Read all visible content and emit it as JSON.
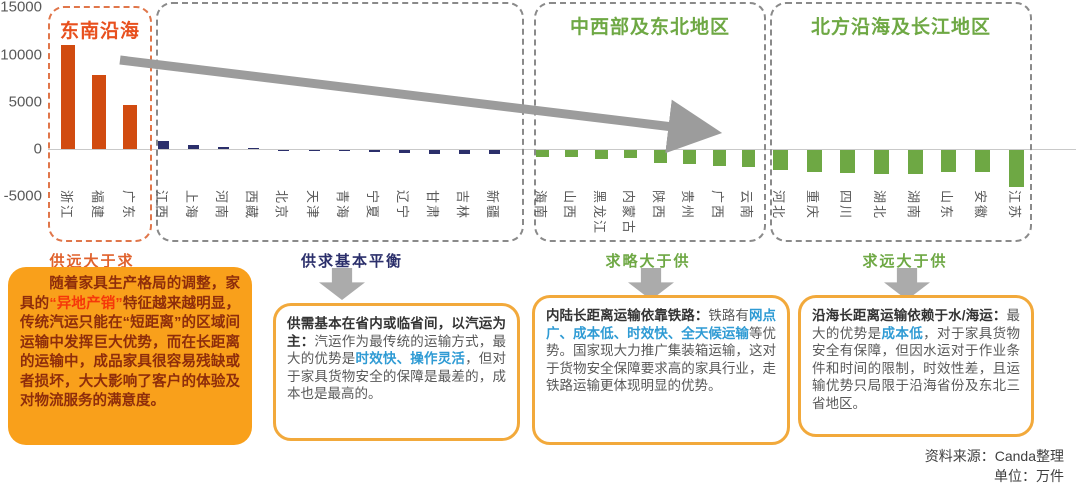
{
  "chart_data": {
    "type": "bar",
    "unit": "万件",
    "yticks": [
      15000,
      10000,
      5000,
      0,
      -5000
    ],
    "ylim": [
      -5000,
      15000
    ],
    "grid": false,
    "trend_arrow": "descending left-to-right",
    "regions": [
      {
        "title": "东南沿海",
        "title_color": "#e8501e",
        "bar_color": "#d14b10",
        "provinces": [
          {
            "name": "浙江",
            "value": 11000
          },
          {
            "name": "福建",
            "value": 7800
          },
          {
            "name": "广东",
            "value": 4700
          }
        ]
      },
      {
        "title": "",
        "title_color": "#2b2f6b",
        "bar_color": "#2b2f6b",
        "provinces": [
          {
            "name": "江西",
            "value": 800
          },
          {
            "name": "上海",
            "value": 400
          },
          {
            "name": "河南",
            "value": 200
          },
          {
            "name": "西藏",
            "value": 50
          },
          {
            "name": "北京",
            "value": -50
          },
          {
            "name": "天津",
            "value": -100
          },
          {
            "name": "青海",
            "value": -150
          },
          {
            "name": "宁夏",
            "value": -250
          },
          {
            "name": "辽宁",
            "value": -300
          },
          {
            "name": "甘肃",
            "value": -400
          },
          {
            "name": "吉林",
            "value": -400
          },
          {
            "name": "新疆",
            "value": -450
          }
        ]
      },
      {
        "title": "中西部及东北地区",
        "title_color": "#6ea844",
        "bar_color": "#6ea844",
        "provinces": [
          {
            "name": "海南",
            "value": -700
          },
          {
            "name": "山西",
            "value": -780
          },
          {
            "name": "黑龙江",
            "value": -1000
          },
          {
            "name": "内蒙古",
            "value": -850
          },
          {
            "name": "陕西",
            "value": -1400
          },
          {
            "name": "贵州",
            "value": -1500
          },
          {
            "name": "广西",
            "value": -1700
          },
          {
            "name": "云南",
            "value": -1800
          }
        ]
      },
      {
        "title": "北方沿海及长江地区",
        "title_color": "#6ea844",
        "bar_color": "#6ea844",
        "provinces": [
          {
            "name": "河北",
            "value": -2100
          },
          {
            "name": "重庆",
            "value": -2350
          },
          {
            "name": "四川",
            "value": -2450
          },
          {
            "name": "湖北",
            "value": -2500
          },
          {
            "name": "湖南",
            "value": -2550
          },
          {
            "name": "山东",
            "value": -2300
          },
          {
            "name": "安徽",
            "value": -2350
          },
          {
            "name": "江苏",
            "value": -3900
          }
        ]
      }
    ]
  },
  "flow_labels": [
    {
      "text": "供远大于求",
      "color": "#e0622d",
      "has_arrow": false
    },
    {
      "text": "供求基本平衡",
      "color": "#2b2f6b",
      "has_arrow": true
    },
    {
      "text": "求略大于供",
      "color": "#6ea844",
      "has_arrow": true
    },
    {
      "text": "求远大于供",
      "color": "#6ea844",
      "has_arrow": true
    }
  ],
  "callouts": [
    {
      "style": "filled",
      "segments": [
        {
          "t": "随着家具生产格局的调整，家具的",
          "s": "body"
        },
        {
          "t": "“异地产销”",
          "s": "red"
        },
        {
          "t": "特征越来越明显，传统汽运只能在“短距离”的区域间运输中发挥巨大优势，而在长距离的运输中，成品家具很容易残缺或者损坏，大大影响了客户的体验及对物流服务的满意度。",
          "s": "body"
        }
      ]
    },
    {
      "style": "outlined",
      "segments": [
        {
          "t": "供需基本在省内或临省间，以汽运为主：",
          "s": "lead"
        },
        {
          "t": "汽运作为最传统的运输方式，最大的优势是",
          "s": "normal"
        },
        {
          "t": "时效快、操作灵活",
          "s": "blue"
        },
        {
          "t": "，但对于家具货物安全的保障是最差的，成本也是最高的。",
          "s": "normal"
        }
      ]
    },
    {
      "style": "outlined",
      "segments": [
        {
          "t": "内陆长距离运输依靠铁路：",
          "s": "lead"
        },
        {
          "t": "铁路有",
          "s": "normal"
        },
        {
          "t": "网点广、成本低、时效快、全天候运输",
          "s": "blue"
        },
        {
          "t": "等优势。国家现大力推广集装箱运输，这对于货物安全保障要求高的家具行业，走铁路运输更体现明显的优势。",
          "s": "normal"
        }
      ]
    },
    {
      "style": "outlined",
      "segments": [
        {
          "t": "沿海长距离运输依赖于水/海运：",
          "s": "lead"
        },
        {
          "t": "最大的优势是",
          "s": "normal"
        },
        {
          "t": "成本低",
          "s": "blue"
        },
        {
          "t": "，对于家具货物安全有保障，但因水运对于作业条件和时间的限制，时效性差，且运输优势只局限于沿海省份及东北三省地区。",
          "s": "normal"
        }
      ]
    }
  ],
  "footer": {
    "source": "资料来源：Canda整理",
    "unit": "单位：万件"
  },
  "colors": {
    "orange_bar": "#d14b10",
    "navy_bar": "#2b2f6b",
    "green_bar": "#6ea844",
    "trend_arrow_gray": "#9c9c9c",
    "fat_arrow_gray": "#ababab",
    "callout_fill_orange": "#f9a01b",
    "callout_border_orange": "#f2a93b",
    "blue_highlight": "#2f9bd4",
    "red_highlight": "#f5380a"
  }
}
